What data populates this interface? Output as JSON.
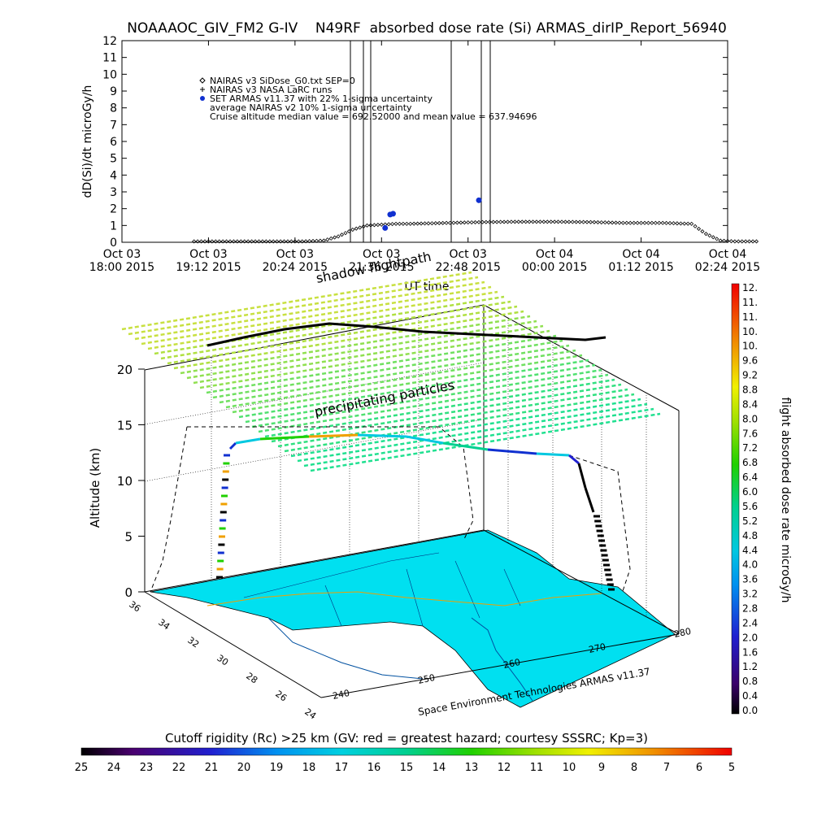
{
  "title": "NOAAAOC_GIV_FM2 G-IV    N49RF  absorbed dose rate (Si) ARMAS_dirIP_Report_56940",
  "chart_data": [
    {
      "type": "scatter",
      "ylabel": "dD(Si)/dt microGy/h",
      "xlabel": "UT time",
      "ylim": [
        0,
        12
      ],
      "yticks": [
        "0",
        "1",
        "2",
        "3",
        "4",
        "5",
        "6",
        "7",
        "8",
        "9",
        "10",
        "11",
        "12"
      ],
      "xticks": [
        {
          "l1": "Oct 03",
          "l2": "18:00 2015"
        },
        {
          "l1": "Oct 03",
          "l2": "19:12 2015"
        },
        {
          "l1": "Oct 03",
          "l2": "20:24 2015"
        },
        {
          "l1": "Oct 03",
          "l2": "21:36 2015"
        },
        {
          "l1": "Oct 03",
          "l2": "22:48 2015"
        },
        {
          "l1": "Oct 04",
          "l2": "00:00 2015"
        },
        {
          "l1": "Oct 04",
          "l2": "01:12 2015"
        },
        {
          "l1": "Oct 04",
          "l2": "02:24 2015"
        }
      ],
      "legend": [
        {
          "marker": "diamond",
          "text": "NAIRAS v3 SiDose_G0.txt SEP=0"
        },
        {
          "marker": "plus",
          "text": "NAIRAS v3 NASA LaRC runs"
        },
        {
          "marker": "dot",
          "text": "SET ARMAS v11.37 with 22% 1-sigma uncertainty"
        },
        {
          "marker": "none",
          "text": "average NAIRAS v2 10% 1-sigma uncertainty"
        },
        {
          "marker": "none",
          "text": "Cruise altitude median value = 692.52000 and mean value = 637.94696"
        }
      ],
      "legend_position": "top-left",
      "series": [
        {
          "name": "NAIRAS v3 SiDose_G0.txt SEP=0",
          "x_hours_from_1800": [
            1.0,
            1.5,
            2.0,
            2.5,
            2.8,
            3.0,
            3.2,
            3.4,
            3.6,
            3.8,
            4.0,
            4.5,
            5.0,
            5.5,
            6.0,
            6.5,
            7.0,
            7.5,
            7.9,
            8.1,
            8.3,
            8.5,
            8.8
          ],
          "values": [
            0.05,
            0.05,
            0.05,
            0.05,
            0.1,
            0.35,
            0.75,
            1.0,
            1.05,
            1.1,
            1.1,
            1.15,
            1.2,
            1.22,
            1.22,
            1.2,
            1.15,
            1.15,
            1.1,
            0.5,
            0.1,
            0.05,
            0.05
          ]
        },
        {
          "name": "SET ARMAS v11.37 with 22% 1-sigma uncertainty",
          "points": [
            {
              "x_hours_from_1800": 3.65,
              "value": 0.85
            },
            {
              "x_hours_from_1800": 3.72,
              "value": 1.65
            },
            {
              "x_hours_from_1800": 3.76,
              "value": 1.7
            },
            {
              "x_hours_from_1800": 4.95,
              "value": 2.5
            }
          ]
        }
      ]
    },
    {
      "type": "3d-trajectory",
      "ylabel": "Altitude (km)",
      "zticks": [
        "0",
        "5",
        "10",
        "15",
        "20"
      ],
      "lat_ticks": [
        "36",
        "34",
        "32",
        "30",
        "28",
        "26",
        "24"
      ],
      "lon_ticks": [
        "240",
        "250",
        "260",
        "270",
        "280"
      ],
      "credit": "Space Environment Technologies ARMAS v11.37",
      "labels": {
        "shadow": "shadow flightpath",
        "precip": "precipitating particles"
      }
    }
  ],
  "colorbar_right": {
    "label": "flight absorbed dose rate microGy/h",
    "ticks": [
      "12.",
      "11.",
      "11.",
      "10.",
      "10.",
      "9.6",
      "9.2",
      "8.8",
      "8.4",
      "8.0",
      "7.6",
      "7.2",
      "6.8",
      "6.4",
      "6.0",
      "5.6",
      "5.2",
      "4.8",
      "4.4",
      "4.0",
      "3.6",
      "3.2",
      "2.8",
      "2.4",
      "2.0",
      "1.6",
      "1.2",
      "0.8",
      "0.4",
      "0.0"
    ]
  },
  "colorbar_bottom": {
    "label": "Cutoff rigidity (Rc) >25 km (GV: red = greatest hazard; courtesy SSSRC; Kp=3)",
    "ticks": [
      "25",
      "24",
      "23",
      "22",
      "21",
      "20",
      "19",
      "18",
      "17",
      "16",
      "15",
      "14",
      "13",
      "12",
      "11",
      "10",
      "9",
      "8",
      "7",
      "6",
      "5"
    ]
  },
  "colors": {
    "map_fill": "#00e0f0",
    "armas_dot": "#1030d0",
    "nairas": "#000000"
  }
}
